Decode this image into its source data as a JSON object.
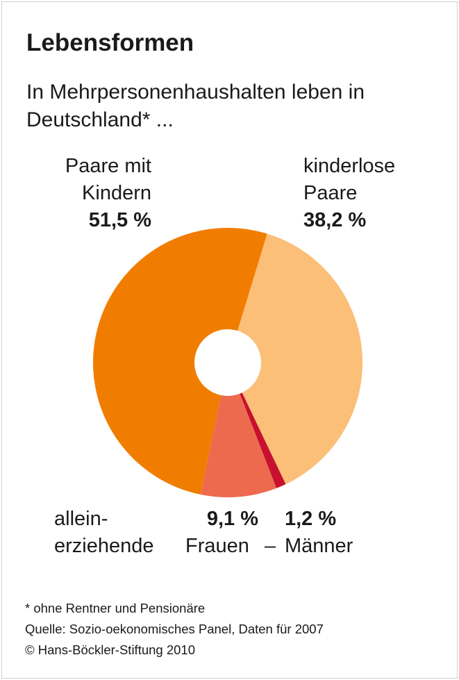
{
  "chart_data": {
    "type": "donut",
    "title": "Lebensformen",
    "subtitle": "In Mehrpersonenhaushalten leben in Deutschland* ...",
    "categories": [
      "kinderlose Paare",
      "Männer",
      "Frauen",
      "Paare mit Kindern"
    ],
    "values": [
      38.2,
      1.2,
      9.1,
      51.5
    ],
    "value_labels": [
      "38,2 %",
      "1,2 %",
      "9,1 %",
      "51,5 %"
    ],
    "colors": [
      "#fbbf78",
      "#c8102e",
      "#ee6a4f",
      "#f07d00"
    ],
    "group_label": "allein-erziehende",
    "group_separator": "–",
    "notes": [
      "* ohne Rentner und Pensionäre",
      "Quelle: Sozio-oekonomisches Panel, Daten für 2007",
      "© Hans-Böckler-Stiftung 2010"
    ]
  }
}
